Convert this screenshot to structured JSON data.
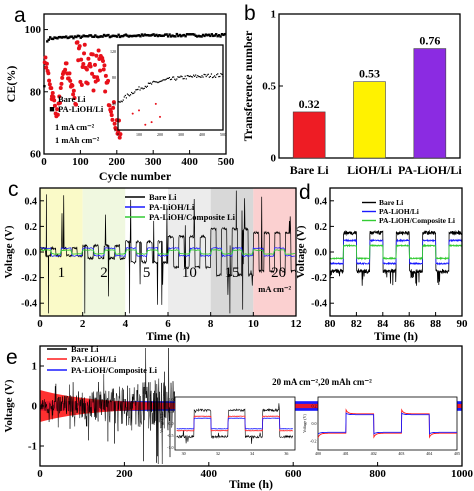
{
  "chart_data": [
    {
      "panel": "a",
      "type": "scatter",
      "xlabel": "Cycle number",
      "ylabel": "CE(%)",
      "xlim": [
        0,
        500
      ],
      "ylim": [
        60,
        105
      ],
      "xticks": [
        "0",
        "100",
        "200",
        "300",
        "400",
        "500"
      ],
      "yticks": [
        "60",
        "80",
        "100"
      ],
      "series": [
        {
          "name": "Bare Li",
          "color": "#e8101a",
          "marker": "circle"
        },
        {
          "name": "PA-LiOH/Li",
          "color": "#000000",
          "marker": "square"
        }
      ],
      "annotations": [
        "1 mA cm⁻²",
        "1 mAh cm⁻²"
      ],
      "inset": {
        "xticks": [
          "0",
          "100",
          "200",
          "300",
          "400",
          "500"
        ],
        "yticks": [
          "0",
          "40",
          "80",
          "120"
        ]
      }
    },
    {
      "panel": "b",
      "type": "bar",
      "ylabel": "Transference number",
      "ylim": [
        0,
        1.0
      ],
      "yticks": [
        "0",
        "0.5",
        "1"
      ],
      "categories": [
        "Bare Li",
        "LiOH/Li",
        "PA-LiOH/Li"
      ],
      "values": [
        0.32,
        0.53,
        0.76
      ],
      "value_labels": [
        "0.32",
        "0.53",
        "0.76"
      ],
      "colors": [
        "#ee1c24",
        "#fff200",
        "#8b2be2"
      ]
    },
    {
      "panel": "c",
      "type": "line",
      "xlabel": "Time (h)",
      "ylabel": "Voltage (V)",
      "xlim": [
        0,
        12
      ],
      "ylim": [
        -0.5,
        0.5
      ],
      "xticks": [
        "0",
        "2",
        "4",
        "6",
        "8",
        "10",
        "12"
      ],
      "yticks": [
        "-0.4",
        "-0.2",
        "0.0",
        "0.2",
        "0.4"
      ],
      "series": [
        {
          "name": "Bare Li",
          "color": "#000000"
        },
        {
          "name": "PA-LiOH/Li",
          "color": "#1a1aff"
        },
        {
          "name": "PA-LiOH/Composite Li",
          "color": "#33cc33"
        }
      ],
      "rate_regions": [
        {
          "label": "1",
          "from": 0,
          "to": 2,
          "color": "#fafac8"
        },
        {
          "label": "2",
          "from": 2,
          "to": 4,
          "color": "#f0f8e0"
        },
        {
          "label": "5",
          "from": 4,
          "to": 6,
          "color": "#ffffff"
        },
        {
          "label": "10",
          "from": 6,
          "to": 8,
          "color": "#ececec"
        },
        {
          "label": "15",
          "from": 8,
          "to": 10,
          "color": "#d8d8d8"
        },
        {
          "label": "20",
          "from": 10,
          "to": 12,
          "color": "#fbd0d0"
        }
      ],
      "unit_label": "mA cm⁻²"
    },
    {
      "panel": "d",
      "type": "line",
      "xlabel": "Time (h)",
      "ylabel": "Voltage (V)",
      "xlim": [
        80,
        90
      ],
      "ylim": [
        -0.5,
        0.5
      ],
      "xticks": [
        "80",
        "82",
        "84",
        "86",
        "88",
        "90"
      ],
      "yticks": [
        "-0.4",
        "-0.2",
        "0.0",
        "0.2",
        "0.4"
      ],
      "series": [
        {
          "name": "Bare Li",
          "color": "#000000"
        },
        {
          "name": "PA-LiOH/Li",
          "color": "#1a1aff"
        },
        {
          "name": "PA-LiOH/Composite Li",
          "color": "#33cc33"
        }
      ]
    },
    {
      "panel": "e",
      "type": "line",
      "xlabel": "Time (h)",
      "ylabel": "Voltage (V)",
      "xlim": [
        0,
        1000
      ],
      "ylim": [
        -1.5,
        1.5
      ],
      "xticks": [
        "0",
        "200",
        "400",
        "600",
        "800",
        "1000"
      ],
      "yticks": [
        "-1",
        "0",
        "1"
      ],
      "series": [
        {
          "name": "Bare Li",
          "color": "#000000"
        },
        {
          "name": "PA-LiOH/Li",
          "color": "#ff1a1a"
        },
        {
          "name": "PA-LiOH/Composite Li",
          "color": "#1a1aff"
        }
      ],
      "condition": "20 mA cm⁻²,20 mAh cm⁻²",
      "inset1": {
        "xticks": [
          "30",
          "32",
          "34",
          "36"
        ],
        "yticks": [
          "-1.0",
          "-0.5",
          "0.0",
          "0.5",
          "1.0"
        ],
        "ylabel": "Voltage (V)"
      },
      "inset2": {
        "xticks": [
          "400",
          "401",
          "402",
          "403",
          "404",
          "405"
        ],
        "yticks": [
          "-0.2",
          "0.0",
          "0.2"
        ],
        "ylabel": "Voltage (V)"
      }
    }
  ]
}
